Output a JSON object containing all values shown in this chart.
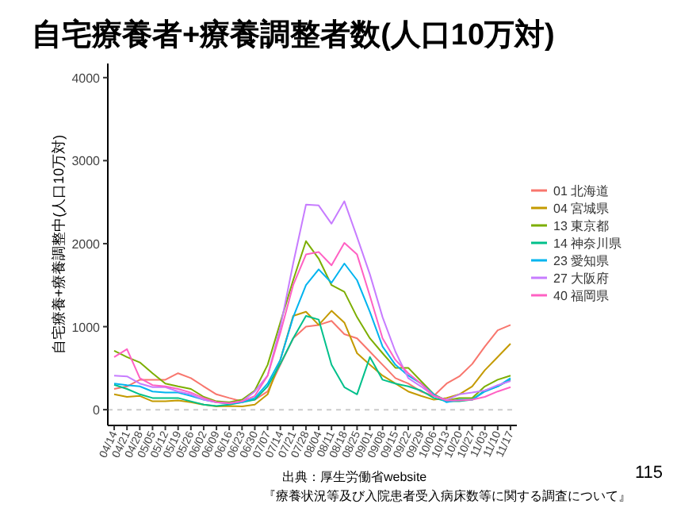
{
  "chart_data": {
    "type": "line",
    "title": "自宅療養者+療養調整者数(人口10万対)",
    "ylabel": "自宅療養+療養調整中(人口10万対)",
    "categories": [
      "04/14",
      "04/21",
      "04/28",
      "05/05",
      "05/12",
      "05/19",
      "05/26",
      "06/02",
      "06/09",
      "06/16",
      "06/23",
      "06/30",
      "07/07",
      "07/14",
      "07/21",
      "07/28",
      "08/04",
      "08/11",
      "08/18",
      "08/25",
      "09/01",
      "09/08",
      "09/15",
      "09/22",
      "09/29",
      "10/06",
      "10/13",
      "10/20",
      "10/27",
      "11/03",
      "11/10",
      "11/17"
    ],
    "ylim": [
      -190,
      4170
    ],
    "yticks": [
      0,
      1000,
      2000,
      3000,
      4000
    ],
    "legend": "right",
    "grid": false,
    "ref_lines": [
      {
        "axis": "y",
        "value": 0,
        "color": "#cccccc",
        "line_style": "dashed"
      }
    ],
    "series": [
      {
        "name": "01 北海道",
        "color": "#f8766d",
        "values": [
          250,
          280,
          360,
          360,
          360,
          440,
          380,
          280,
          185,
          140,
          100,
          120,
          220,
          540,
          860,
          1000,
          1020,
          1070,
          910,
          860,
          700,
          540,
          380,
          315,
          220,
          165,
          315,
          400,
          550,
          760,
          955,
          1020
        ]
      },
      {
        "name": "04 宮城県",
        "color": "#c49a00",
        "values": [
          185,
          155,
          165,
          100,
          100,
          110,
          90,
          60,
          40,
          45,
          40,
          60,
          185,
          600,
          1130,
          1180,
          1020,
          1190,
          1050,
          680,
          540,
          410,
          315,
          220,
          165,
          120,
          140,
          185,
          280,
          475,
          635,
          795
        ]
      },
      {
        "name": "13 東京都",
        "color": "#7cae00",
        "values": [
          710,
          635,
          570,
          440,
          315,
          280,
          250,
          155,
          100,
          90,
          120,
          230,
          540,
          1050,
          1560,
          2030,
          1820,
          1500,
          1420,
          1115,
          860,
          680,
          505,
          505,
          345,
          185,
          110,
          140,
          140,
          280,
          360,
          410
        ]
      },
      {
        "name": "14 神奈川県",
        "color": "#00c08b",
        "values": [
          300,
          250,
          185,
          140,
          140,
          140,
          100,
          60,
          45,
          60,
          90,
          120,
          280,
          550,
          860,
          1130,
          1085,
          540,
          270,
          185,
          635,
          360,
          315,
          280,
          230,
          140,
          100,
          100,
          120,
          230,
          280,
          360
        ]
      },
      {
        "name": "23 愛知県",
        "color": "#00b4ef",
        "values": [
          315,
          295,
          280,
          220,
          205,
          205,
          165,
          120,
          90,
          70,
          90,
          140,
          315,
          600,
          1115,
          1500,
          1690,
          1530,
          1760,
          1560,
          1180,
          760,
          540,
          410,
          315,
          185,
          90,
          120,
          120,
          220,
          280,
          380
        ]
      },
      {
        "name": "27 大阪府",
        "color": "#c77cff",
        "values": [
          410,
          400,
          315,
          270,
          270,
          220,
          185,
          120,
          90,
          77,
          100,
          220,
          410,
          990,
          1760,
          2470,
          2460,
          2240,
          2510,
          2080,
          1630,
          1115,
          700,
          380,
          280,
          165,
          120,
          185,
          205,
          230,
          295,
          345
        ]
      },
      {
        "name": "40 福岡県",
        "color": "#ff61c3",
        "values": [
          635,
          730,
          380,
          295,
          280,
          250,
          205,
          140,
          90,
          77,
          100,
          165,
          410,
          925,
          1500,
          1870,
          1900,
          1740,
          2010,
          1870,
          1370,
          860,
          600,
          440,
          315,
          165,
          110,
          110,
          120,
          155,
          220,
          270
        ]
      }
    ],
    "annotations": [
      "出典：厚生労働省website",
      "『療養状況等及び入院患者受入病床数等に関する調査について』",
      "115"
    ]
  }
}
